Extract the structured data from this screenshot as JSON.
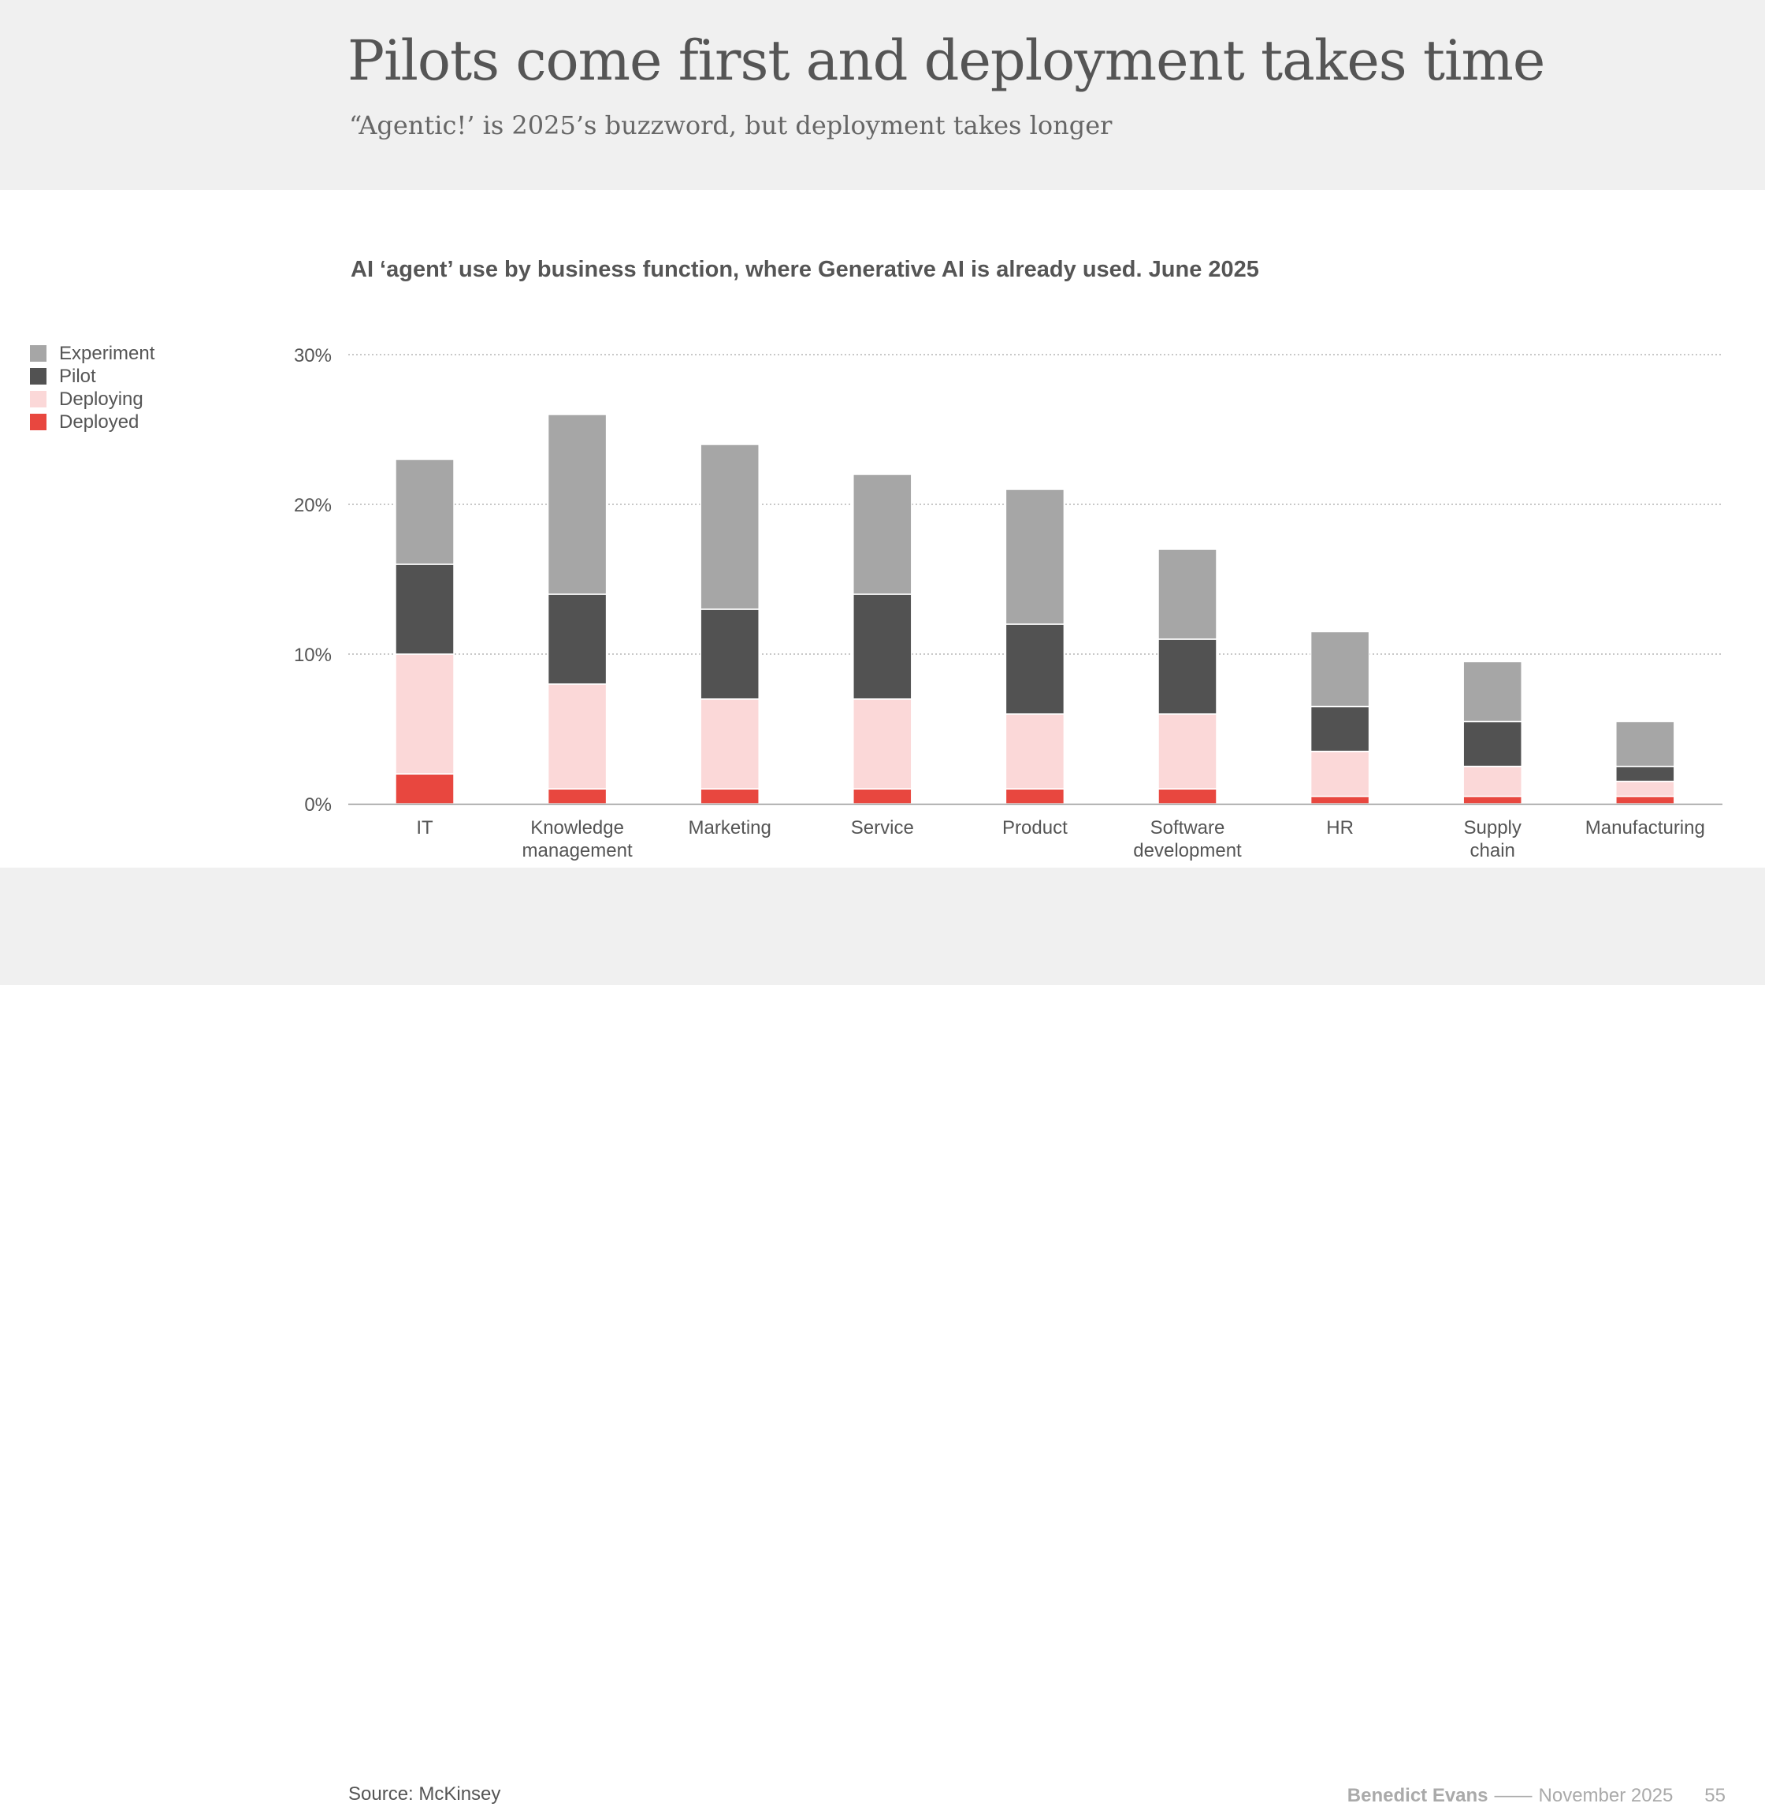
{
  "slide": {
    "title": "Pilots come first and deployment takes time",
    "subtitle": "“Agentic!’ is 2025’s buzzword, but deployment takes longer",
    "source": "Source: McKinsey",
    "author": "Benedict Evans",
    "separator": "——",
    "date": "November 2025",
    "page": "55"
  },
  "chart_data": {
    "type": "bar",
    "stacked": true,
    "title": "AI ‘agent’ use by business function, where Generative AI is already used. June 2025",
    "categories": [
      [
        "IT"
      ],
      [
        "Knowledge",
        "management"
      ],
      [
        "Marketing"
      ],
      [
        "Service"
      ],
      [
        "Product"
      ],
      [
        "Software",
        "development"
      ],
      [
        "HR"
      ],
      [
        "Supply",
        "chain"
      ],
      [
        "Manufacturing"
      ]
    ],
    "series": [
      {
        "name": "Deployed",
        "color": "#e8473f",
        "values": [
          2,
          1,
          1,
          1,
          1,
          1,
          0.5,
          0.5,
          0.5
        ]
      },
      {
        "name": "Deploying",
        "color": "#fbd8d8",
        "values": [
          8,
          7,
          6,
          6,
          5,
          5,
          3,
          2,
          1
        ]
      },
      {
        "name": "Pilot",
        "color": "#525252",
        "values": [
          6,
          6,
          6,
          7,
          6,
          5,
          3,
          3,
          1
        ]
      },
      {
        "name": "Experiment",
        "color": "#a6a6a6",
        "values": [
          7,
          12,
          11,
          8,
          9,
          6,
          5,
          4,
          3
        ]
      }
    ],
    "legend_order": [
      "Experiment",
      "Pilot",
      "Deploying",
      "Deployed"
    ],
    "ylim": [
      0,
      30
    ],
    "yticks": [
      0,
      10,
      20,
      30
    ],
    "ytick_labels": [
      "0%",
      "10%",
      "20%",
      "30%"
    ],
    "grid": true,
    "legend_position": "left"
  }
}
